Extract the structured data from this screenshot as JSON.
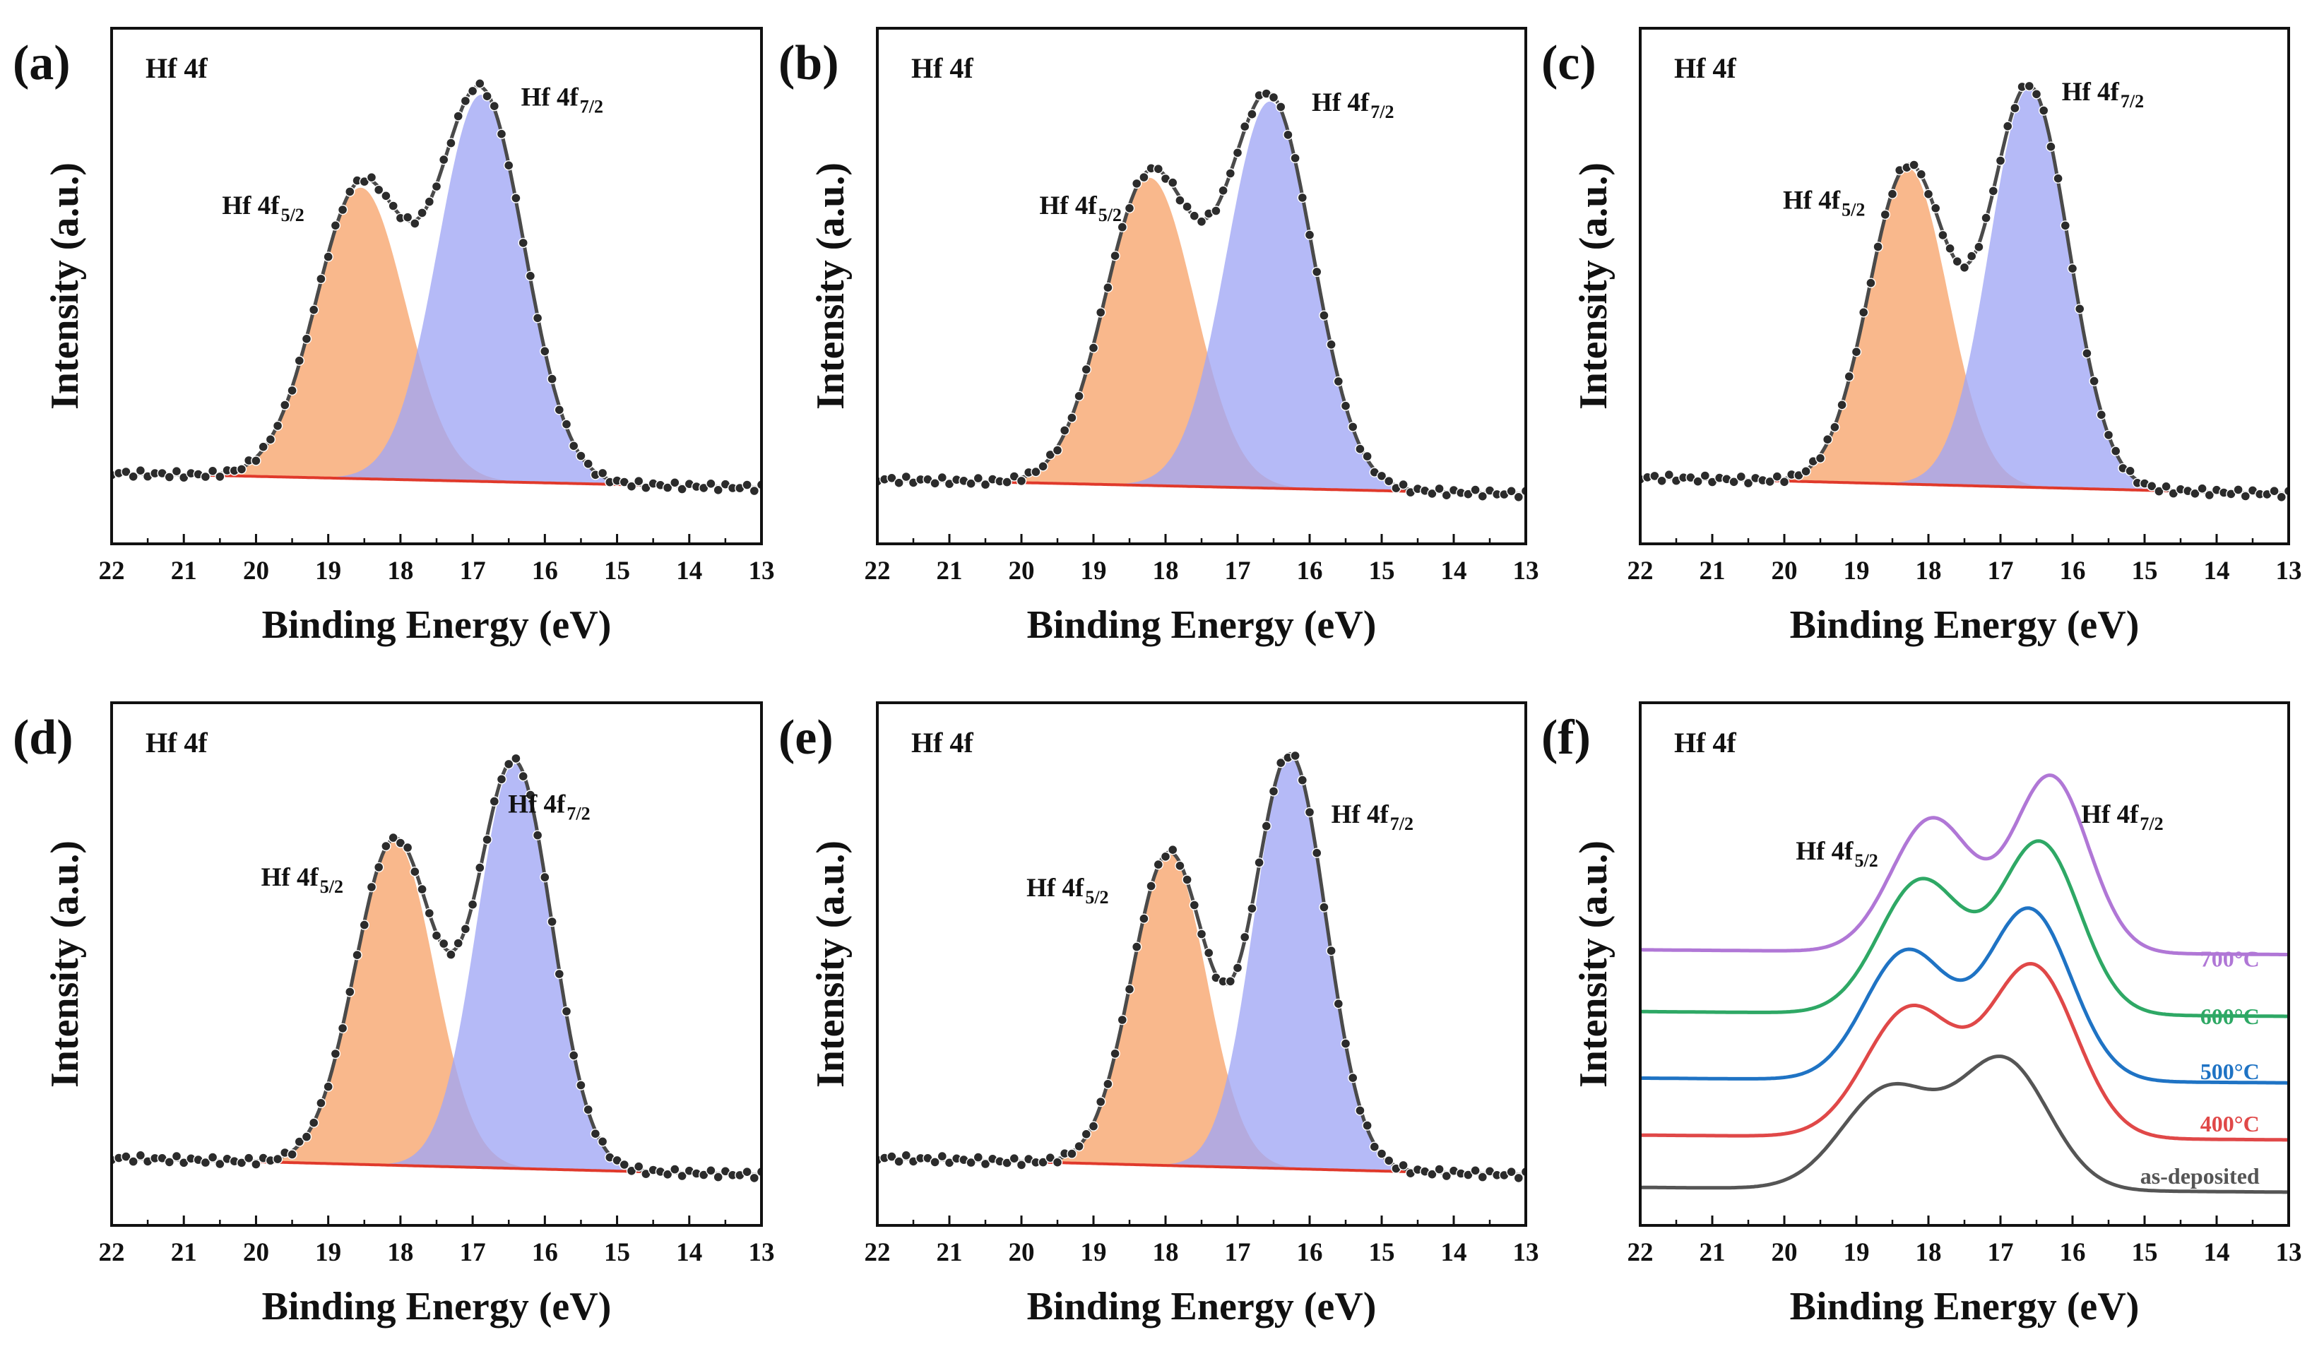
{
  "chart_data": [
    {
      "panel": "(a)",
      "type": "line",
      "title": "Hf 4f",
      "xlabel": "Binding Energy (eV)",
      "ylabel": "Intensity (a.u.)",
      "xlim": [
        22,
        13
      ],
      "ylim": [
        -0.12,
        1.12
      ],
      "xticks": [
        "22",
        "21",
        "20",
        "19",
        "18",
        "17",
        "16",
        "15",
        "14",
        "13"
      ],
      "background": [
        0.05,
        0.015
      ],
      "peaks": [
        {
          "name": "Hf 4f5/2",
          "label": "Hf 4f",
          "sub": "5/2",
          "center": 18.55,
          "height": 0.7,
          "width": 0.62,
          "color": "#f7a46b"
        },
        {
          "name": "Hf 4f7/2",
          "label": "Hf 4f",
          "sub": "7/2",
          "center": 16.88,
          "height": 0.93,
          "width": 0.6,
          "color": "#a0a6f5"
        }
      ]
    },
    {
      "panel": "(b)",
      "type": "line",
      "title": "Hf 4f",
      "xlabel": "Binding Energy (eV)",
      "ylabel": "Intensity (a.u.)",
      "xlim": [
        22,
        13
      ],
      "ylim": [
        -0.12,
        1.12
      ],
      "xticks": [
        "22",
        "21",
        "20",
        "19",
        "18",
        "17",
        "16",
        "15",
        "14",
        "13"
      ],
      "background": [
        0.035,
        0.0
      ],
      "peaks": [
        {
          "name": "Hf 4f5/2",
          "label": "Hf 4f",
          "sub": "5/2",
          "center": 18.22,
          "height": 0.74,
          "width": 0.62,
          "color": "#f7a46b"
        },
        {
          "name": "Hf 4f7/2",
          "label": "Hf 4f",
          "sub": "7/2",
          "center": 16.55,
          "height": 0.93,
          "width": 0.6,
          "color": "#a0a6f5"
        }
      ]
    },
    {
      "panel": "(c)",
      "type": "line",
      "title": "Hf 4f",
      "xlabel": "Binding Energy (eV)",
      "ylabel": "Intensity (a.u.)",
      "xlim": [
        22,
        13
      ],
      "ylim": [
        -0.12,
        1.12
      ],
      "xticks": [
        "22",
        "21",
        "20",
        "19",
        "18",
        "17",
        "16",
        "15",
        "14",
        "13"
      ],
      "background": [
        0.04,
        0.0
      ],
      "peaks": [
        {
          "name": "Hf 4f5/2",
          "label": "Hf 4f",
          "sub": "5/2",
          "center": 18.28,
          "height": 0.76,
          "width": 0.55,
          "color": "#f7a46b"
        },
        {
          "name": "Hf 4f7/2",
          "label": "Hf 4f",
          "sub": "7/2",
          "center": 16.6,
          "height": 0.96,
          "width": 0.55,
          "color": "#a0a6f5"
        }
      ]
    },
    {
      "panel": "(d)",
      "type": "line",
      "title": "Hf 4f",
      "xlabel": "Binding Energy (eV)",
      "ylabel": "Intensity (a.u.)",
      "xlim": [
        22,
        13
      ],
      "ylim": [
        -0.12,
        1.12
      ],
      "xticks": [
        "22",
        "21",
        "20",
        "19",
        "18",
        "17",
        "16",
        "15",
        "14",
        "13"
      ],
      "background": [
        0.04,
        0.0
      ],
      "peaks": [
        {
          "name": "Hf 4f5/2",
          "label": "Hf 4f",
          "sub": "5/2",
          "center": 18.08,
          "height": 0.77,
          "width": 0.55,
          "color": "#f7a46b"
        },
        {
          "name": "Hf 4f7/2",
          "label": "Hf 4f",
          "sub": "7/2",
          "center": 16.42,
          "height": 0.96,
          "width": 0.52,
          "color": "#a0a6f5"
        }
      ]
    },
    {
      "panel": "(e)",
      "type": "line",
      "title": "Hf 4f",
      "xlabel": "Binding Energy (eV)",
      "ylabel": "Intensity (a.u.)",
      "xlim": [
        22,
        13
      ],
      "ylim": [
        -0.12,
        1.12
      ],
      "xticks": [
        "22",
        "21",
        "20",
        "19",
        "18",
        "17",
        "16",
        "15",
        "14",
        "13"
      ],
      "background": [
        0.04,
        0.0
      ],
      "peaks": [
        {
          "name": "Hf 4f5/2",
          "label": "Hf 4f",
          "sub": "5/2",
          "center": 17.95,
          "height": 0.74,
          "width": 0.52,
          "color": "#f7a46b"
        },
        {
          "name": "Hf 4f7/2",
          "label": "Hf 4f",
          "sub": "7/2",
          "center": 16.27,
          "height": 0.98,
          "width": 0.5,
          "color": "#a0a6f5"
        }
      ]
    },
    {
      "panel": "(f)",
      "type": "line",
      "title": "Hf 4f",
      "xlabel": "Binding Energy (eV)",
      "ylabel": "Intensity (a.u.)",
      "xlim": [
        22,
        13
      ],
      "ylim": [
        -0.05,
        1.05
      ],
      "xticks": [
        "22",
        "21",
        "20",
        "19",
        "18",
        "17",
        "16",
        "15",
        "14",
        "13"
      ],
      "annotations": [
        {
          "label": "Hf 4f",
          "sub": "5/2"
        },
        {
          "label": "Hf 4f",
          "sub": "7/2"
        }
      ],
      "series": [
        {
          "name": "as-deposited",
          "color": "#555555",
          "offset": 0.02,
          "background": [
            0.01,
            0.0
          ],
          "peaks": [
            [
              18.55,
              0.21,
              0.65
            ],
            [
              16.95,
              0.27,
              0.62
            ]
          ]
        },
        {
          "name": "400°C",
          "color": "#e04848",
          "offset": 0.13,
          "background": [
            0.01,
            0.0
          ],
          "peaks": [
            [
              18.25,
              0.27,
              0.62
            ],
            [
              16.55,
              0.36,
              0.6
            ]
          ]
        },
        {
          "name": "500°C",
          "color": "#1f73c4",
          "offset": 0.25,
          "background": [
            0.01,
            0.0
          ],
          "peaks": [
            [
              18.3,
              0.27,
              0.58
            ],
            [
              16.6,
              0.36,
              0.58
            ]
          ]
        },
        {
          "name": "600°C",
          "color": "#2ea865",
          "offset": 0.39,
          "background": [
            0.01,
            0.0
          ],
          "peaks": [
            [
              18.1,
              0.28,
              0.58
            ],
            [
              16.45,
              0.36,
              0.55
            ]
          ]
        },
        {
          "name": "700°C",
          "color": "#b077d6",
          "offset": 0.52,
          "background": [
            0.01,
            0.0
          ],
          "peaks": [
            [
              17.95,
              0.28,
              0.56
            ],
            [
              16.3,
              0.37,
              0.52
            ]
          ]
        }
      ]
    }
  ]
}
